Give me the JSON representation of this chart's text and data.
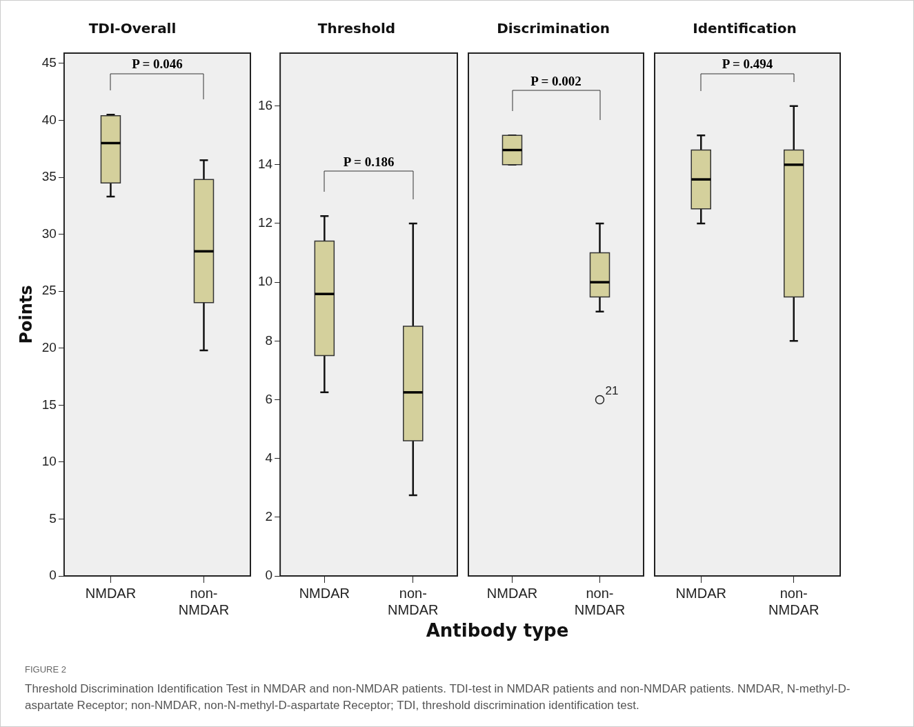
{
  "chart_data": [
    {
      "type": "box",
      "title": "TDI-Overall",
      "ylabel": "Points",
      "categories": [
        "NMDAR",
        "non-NMDAR"
      ],
      "ylim": [
        0,
        45.9
      ],
      "yticks": [
        0,
        5,
        10,
        15,
        20,
        25,
        30,
        35,
        40,
        45
      ],
      "series": [
        {
          "color": "#d4d09c",
          "boxes": [
            {
              "low": 33.3,
              "q1": 34.5,
              "median": 38,
              "q3": 40.4,
              "high": 40.5
            },
            {
              "low": 19.8,
              "q1": 24,
              "median": 28.5,
              "q3": 34.8,
              "high": 36.5
            }
          ]
        }
      ],
      "annotations": [
        "P = 0.046",
        "FIGURE 2",
        "Threshold Discrimination Identification Test in NMDAR and non-NMDAR patients. TDI-test in NMDAR patients and non-NMDAR patients. NMDAR, N-methyl-D-aspartate Receptor; non-NMDAR, non-N-methyl-D-aspartate Receptor; TDI, threshold discrimination identification test."
      ]
    },
    {
      "type": "box",
      "title": "Threshold",
      "categories": [
        "NMDAR",
        "non-NMDAR"
      ],
      "ylim": [
        0,
        17.8
      ],
      "yticks": [
        0,
        2,
        4,
        6,
        8,
        10,
        12,
        14,
        16
      ],
      "series": [
        {
          "color": "#d4d09c",
          "boxes": [
            {
              "low": 6.25,
              "q1": 7.5,
              "median": 9.6,
              "q3": 11.4,
              "high": 12.25
            },
            {
              "low": 2.75,
              "q1": 4.6,
              "median": 6.25,
              "q3": 8.5,
              "high": 12
            }
          ]
        }
      ],
      "annotations": [
        "P = 0.186"
      ]
    },
    {
      "type": "box",
      "title": "Discrimination",
      "xlabel": "Antibody type",
      "categories": [
        "NMDAR",
        "non-NMDAR"
      ],
      "ylim": [
        0,
        17.8
      ],
      "tick_labels": "x",
      "series": [
        {
          "color": "#d4d09c",
          "boxes": [
            {
              "low": 14,
              "q1": 14,
              "median": 14.5,
              "q3": 15,
              "high": 15
            },
            {
              "low": 9,
              "q1": 9.5,
              "median": 10,
              "q3": 11,
              "high": 12,
              "outliers": [
                6
              ]
            }
          ]
        }
      ],
      "annotations": [
        "P = 0.002",
        "21"
      ]
    },
    {
      "type": "box",
      "title": "Identification",
      "categories": [
        "NMDAR",
        "non-NMDAR"
      ],
      "ylim": [
        0,
        17.8
      ],
      "tick_labels": "x",
      "series": [
        {
          "color": "#d4d09c",
          "boxes": [
            {
              "low": 12,
              "q1": 12.5,
              "median": 13.5,
              "q3": 14.5,
              "high": 15
            },
            {
              "low": 8,
              "q1": 9.5,
              "median": 14,
              "q3": 14.5,
              "high": 16
            }
          ]
        }
      ],
      "annotations": [
        "P = 0.494"
      ]
    }
  ]
}
